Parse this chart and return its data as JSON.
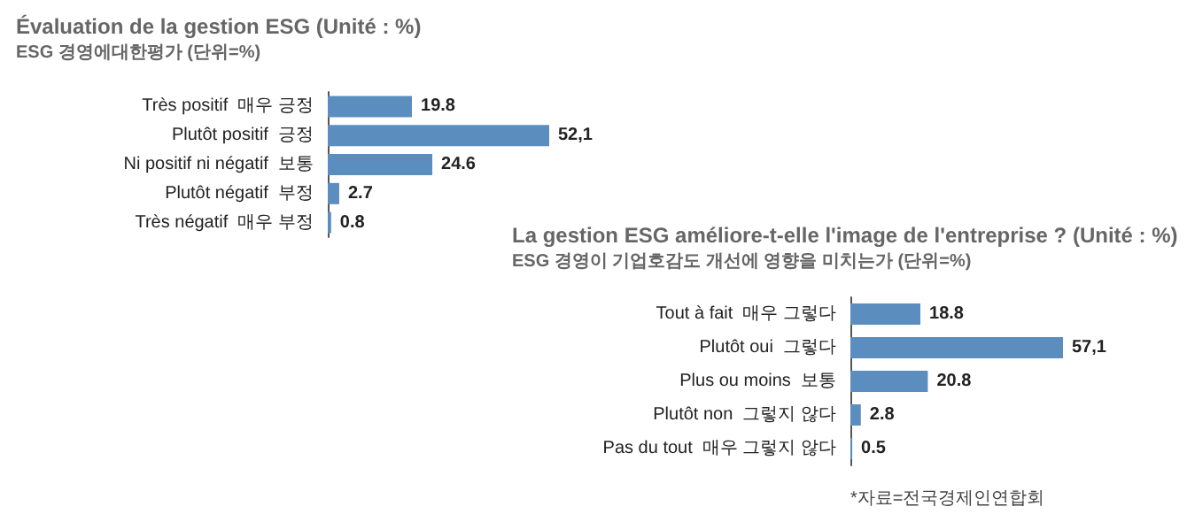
{
  "chart_data": [
    {
      "type": "bar",
      "orientation": "horizontal",
      "title": "Évaluation de la gestion ESG (Unité : %)",
      "subtitle": "ESG 경영에대한평가 (단위=%)",
      "categories": [
        "Très positif  매우 긍정",
        "Plutôt positif  긍정",
        "Ni positif ni négatif  보통",
        "Plutôt négatif  부정",
        "Très négatif  매우 부정"
      ],
      "values": [
        19.8,
        52.1,
        24.6,
        2.7,
        0.8
      ],
      "value_labels": [
        "19.8",
        "52,1",
        "24.6",
        "2.7",
        "0.8"
      ],
      "color": "#5b8dbf"
    },
    {
      "type": "bar",
      "orientation": "horizontal",
      "title": "La gestion ESG améliore-t-elle l'image de l'entreprise ? (Unité : %)",
      "subtitle": "ESG 경영이 기업호감도 개선에 영향을 미치는가 (단위=%)",
      "categories": [
        "Tout à fait  매우 그렇다",
        "Plutôt oui  그렇다",
        "Plus ou moins  보통",
        "Plutôt non  그렇지 않다",
        "Pas du tout  매우 그렇지 않다"
      ],
      "values": [
        18.8,
        57.1,
        20.8,
        2.8,
        0.5
      ],
      "value_labels": [
        "18.8",
        "57,1",
        "20.8",
        "2.8",
        "0.5"
      ],
      "color": "#5b8dbf",
      "annotations": [
        "*자료=전국경제인연합회"
      ]
    }
  ]
}
